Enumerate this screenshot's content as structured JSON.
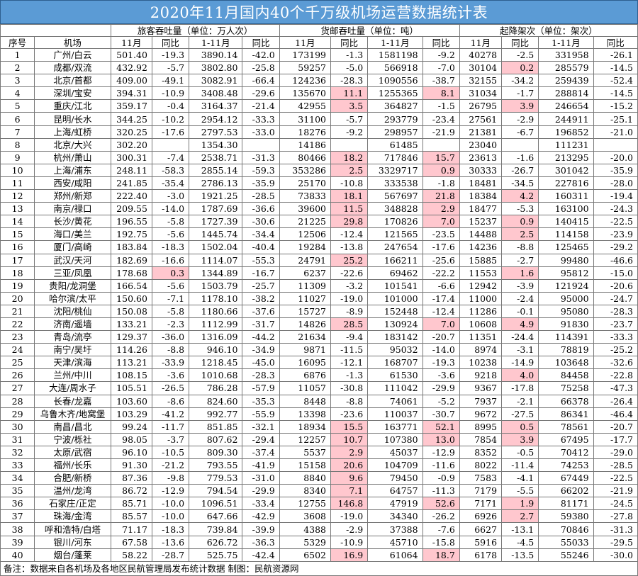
{
  "title": "2020年11月国内40个千万级机场运营数据统计表",
  "header": {
    "seq": "序号",
    "airport": "机场",
    "group_passenger": "旅客吞吐量（单位：万人次）",
    "group_cargo": "货邮吞吐量（单位：吨）",
    "group_flights": "起降架次（单位：架次）",
    "nov": "11月",
    "yoy": "同比",
    "ytd": "1-11月"
  },
  "highlight_color": "#ffc7ce",
  "header_color": "#5b9bd5",
  "rows": [
    [
      "1",
      "广州/白云",
      "501.40",
      "-19.3",
      "3890.14",
      "-42.0",
      "173199",
      "-1.3",
      "1581198",
      "-9.2",
      "40278",
      "-2.5",
      "331958",
      "-26.1"
    ],
    [
      "2",
      "成都/双流",
      "432.92",
      "-5.7",
      "3802.80",
      "-25.8",
      "59257",
      "-5.0",
      "566918",
      "-7.0",
      "30104",
      "0.2",
      "285579",
      "-14.5"
    ],
    [
      "3",
      "北京/首都",
      "409.00",
      "-49.1",
      "3082.91",
      "-66.4",
      "124236",
      "-28.3",
      "1090556",
      "-38.7",
      "32155",
      "-34.2",
      "259439",
      "-52.4"
    ],
    [
      "4",
      "深圳/宝安",
      "394.31",
      "-10.9",
      "3408.48",
      "-29.6",
      "135670",
      "11.1",
      "1255365",
      "8.1",
      "31034",
      "-1.7",
      "288814",
      "-14.5"
    ],
    [
      "5",
      "重庆/江北",
      "359.17",
      "-0.4",
      "3164.37",
      "-21.4",
      "42955",
      "3.5",
      "364827",
      "-1.5",
      "26795",
      "3.9",
      "246654",
      "-15.2"
    ],
    [
      "6",
      "昆明/长水",
      "344.25",
      "-10.2",
      "2954.12",
      "-33.3",
      "31100",
      "-5.7",
      "293779",
      "-23.4",
      "27561",
      "-2.9",
      "244911",
      "-25.1"
    ],
    [
      "7",
      "上海/虹桥",
      "320.25",
      "-17.6",
      "2797.53",
      "-33.0",
      "18276",
      "-9.2",
      "298957",
      "-21.9",
      "21381",
      "-6.7",
      "196852",
      "-21.0"
    ],
    [
      "8",
      "北京/大兴",
      "302.20",
      "",
      "1354.30",
      "",
      "14186",
      "",
      "61485",
      "",
      "23040",
      "",
      "111231",
      ""
    ],
    [
      "9",
      "杭州/萧山",
      "300.31",
      "-7.4",
      "2538.71",
      "-31.3",
      "80466",
      "18.2",
      "717846",
      "15.7",
      "23613",
      "-1.6",
      "213295",
      "-20.0"
    ],
    [
      "10",
      "上海/浦东",
      "248.11",
      "-58.3",
      "2855.14",
      "-59.3",
      "353286",
      "2.5",
      "3329717",
      "0.9",
      "30333",
      "-26.7",
      "301042",
      "-35.9"
    ],
    [
      "11",
      "西安/咸阳",
      "241.85",
      "-35.4",
      "2786.13",
      "-35.9",
      "25170",
      "-10.8",
      "333538",
      "-1.8",
      "18481",
      "-34.5",
      "227816",
      "-28.0"
    ],
    [
      "12",
      "郑州/新郑",
      "222.40",
      "-3.0",
      "1921.25",
      "-28.5",
      "73833",
      "18.1",
      "567697",
      "21.8",
      "18384",
      "4.2",
      "160311",
      "-19.4"
    ],
    [
      "13",
      "南京/禄口",
      "209.55",
      "-14.0",
      "1787.69",
      "-36.6",
      "39600",
      "11.5",
      "348828",
      "2.9",
      "18477",
      "-5.3",
      "163100",
      "-24.3"
    ],
    [
      "14",
      "长沙/黄花",
      "196.55",
      "-5.8",
      "1727.39",
      "-30.6",
      "21225",
      "29.8",
      "170826",
      "7.0",
      "15237",
      "0.9",
      "140415",
      "-22.5"
    ],
    [
      "15",
      "海口/美兰",
      "192.75",
      "-5.6",
      "1445.74",
      "-34.4",
      "12506",
      "-12.4",
      "121565",
      "-23.5",
      "14488",
      "2.5",
      "114158",
      "-23.9"
    ],
    [
      "16",
      "厦门/高崎",
      "183.84",
      "-18.3",
      "1502.04",
      "-40.4",
      "19284",
      "-13.8",
      "247654",
      "-17.6",
      "14236",
      "-8.8",
      "125465",
      "-29.2"
    ],
    [
      "17",
      "武汉/天河",
      "182.69",
      "-16.6",
      "1114.07",
      "-55.3",
      "24791",
      "25.2",
      "166211",
      "-25.6",
      "15885",
      "-2.7",
      "99480",
      "-46.6"
    ],
    [
      "18",
      "三亚/凤凰",
      "178.68",
      "0.3",
      "1344.89",
      "-16.7",
      "6237",
      "-22.6",
      "69462",
      "-22.2",
      "11553",
      "1.6",
      "95812",
      "-15.0"
    ],
    [
      "19",
      "贵阳/龙洞堡",
      "166.54",
      "-5.6",
      "1503.79",
      "-25.7",
      "11309",
      "-3.2",
      "101541",
      "-6.6",
      "12942",
      "-3.9",
      "121924",
      "-20.6"
    ],
    [
      "20",
      "哈尔滨/太平",
      "150.60",
      "-7.1",
      "1178.10",
      "-38.2",
      "11027",
      "-19.0",
      "101000",
      "-17.4",
      "11000",
      "-2.4",
      "95000",
      "-24.7"
    ],
    [
      "21",
      "沈阳/桃仙",
      "150.08",
      "-5.8",
      "1180.66",
      "-37.6",
      "15727",
      "-8.9",
      "152448",
      "-12.4",
      "11286",
      "-0.1",
      "95080",
      "-28.3"
    ],
    [
      "22",
      "济南/遥墙",
      "133.21",
      "-2.3",
      "1112.99",
      "-31.7",
      "14826",
      "28.5",
      "130924",
      "7.0",
      "10608",
      "4.9",
      "91830",
      "-23.7"
    ],
    [
      "23",
      "青岛/流亭",
      "129.37",
      "-36.0",
      "1316.09",
      "-44.2",
      "21634",
      "-9.4",
      "183142",
      "-20.7",
      "11351",
      "-24.4",
      "114391",
      "-33.3"
    ],
    [
      "24",
      "南宁/吴圩",
      "114.26",
      "-8.8",
      "946.10",
      "-34.9",
      "9871",
      "-11.5",
      "95032",
      "-14.0",
      "8974",
      "-3.1",
      "78819",
      "-25.2"
    ],
    [
      "25",
      "天津/滨海",
      "113.21",
      "-33.9",
      "1218.45",
      "-45.0",
      "16095",
      "-12.1",
      "168707",
      "-19.3",
      "10238",
      "-14.9",
      "103648",
      "-32.6"
    ],
    [
      "26",
      "兰州/中川",
      "108.15",
      "-3.6",
      "1010.68",
      "-28.3",
      "6876",
      "-1.3",
      "61530",
      "-3.6",
      "9218",
      "4.0",
      "84458",
      "-22.8"
    ],
    [
      "27",
      "大连/周水子",
      "105.51",
      "-26.5",
      "786.28",
      "-57.9",
      "11057",
      "-30.8",
      "111042",
      "-29.9",
      "9367",
      "-17.8",
      "75258",
      "-47.3"
    ],
    [
      "28",
      "长春/龙嘉",
      "103.60",
      "-8.6",
      "824.60",
      "-35.3",
      "8448",
      "-8.8",
      "74061",
      "-5.2",
      "7937",
      "-2.1",
      "66378",
      "-26.4"
    ],
    [
      "29",
      "乌鲁木齐/地窝堡",
      "103.29",
      "-41.2",
      "992.77",
      "-55.9",
      "13398",
      "-23.6",
      "110037",
      "-30.7",
      "9672",
      "-27.5",
      "86341",
      "-46.4"
    ],
    [
      "30",
      "南昌/昌北",
      "99.24",
      "-11.7",
      "851.85",
      "-32.1",
      "18934",
      "15.5",
      "163771",
      "52.1",
      "8995",
      "0.5",
      "78561",
      "-20.7"
    ],
    [
      "31",
      "宁波/栎社",
      "98.05",
      "-3.7",
      "807.62",
      "-29.4",
      "12257",
      "10.7",
      "107380",
      "13.0",
      "7854",
      "3.9",
      "67495",
      "-17.7"
    ],
    [
      "32",
      "太原/武宿",
      "96.10",
      "-10.5",
      "809.30",
      "-37.4",
      "5537",
      "2.9",
      "45037",
      "-12.9",
      "8352",
      "-0.5",
      "70412",
      "-29.0"
    ],
    [
      "33",
      "福州/长乐",
      "91.30",
      "-21.2",
      "793.55",
      "-41.9",
      "15158",
      "20.6",
      "104709",
      "-11.6",
      "8022",
      "-11.4",
      "74253",
      "-28.5"
    ],
    [
      "34",
      "合肥/新桥",
      "87.36",
      "-9.8",
      "779.53",
      "-31.0",
      "8840",
      "9.6",
      "79450",
      "-0.9",
      "7583",
      "-4.1",
      "67449",
      "-22.5"
    ],
    [
      "35",
      "温州/龙湾",
      "86.72",
      "-12.9",
      "794.54",
      "-29.9",
      "8340",
      "7.1",
      "64757",
      "-11.3",
      "7179",
      "-5.5",
      "66202",
      "-21.9"
    ],
    [
      "36",
      "石家庄/正定",
      "85.71",
      "-10.0",
      "1096.51",
      "-33.4",
      "12755",
      "146.8",
      "47919",
      "52.6",
      "7171",
      "1.9",
      "81171",
      "-24.5"
    ],
    [
      "37",
      "珠海/金湾",
      "85.57",
      "-10.0",
      "647.66",
      "-42.9",
      "3608",
      "-19.0",
      "34340",
      "-26.2",
      "6926",
      "2.7",
      "59380",
      "-27.8"
    ],
    [
      "38",
      "呼和浩特/白塔",
      "71.17",
      "-18.3",
      "739.84",
      "-39.9",
      "4388",
      "-2.9",
      "37388",
      "-7.6",
      "6627",
      "-13.1",
      "70846",
      "-31.3"
    ],
    [
      "39",
      "银川/河东",
      "67.58",
      "-13.6",
      "626.72",
      "-36.3",
      "5329",
      "-10.9",
      "45710",
      "-15.8",
      "5916",
      "-4.5",
      "55033",
      "-29.5"
    ],
    [
      "40",
      "烟台/蓬莱",
      "58.22",
      "-28.7",
      "525.75",
      "-42.4",
      "6502",
      "16.9",
      "61064",
      "18.7",
      "6178",
      "-13.5",
      "55246",
      "-30.0"
    ]
  ],
  "highlights": [
    [
      2,
      11
    ],
    [
      4,
      7
    ],
    [
      4,
      9
    ],
    [
      5,
      7
    ],
    [
      5,
      11
    ],
    [
      9,
      7
    ],
    [
      9,
      9
    ],
    [
      10,
      7
    ],
    [
      10,
      9
    ],
    [
      12,
      7
    ],
    [
      12,
      9
    ],
    [
      12,
      11
    ],
    [
      13,
      7
    ],
    [
      13,
      9
    ],
    [
      14,
      7
    ],
    [
      14,
      9
    ],
    [
      14,
      11
    ],
    [
      15,
      11
    ],
    [
      17,
      7
    ],
    [
      18,
      3
    ],
    [
      18,
      11
    ],
    [
      22,
      7
    ],
    [
      22,
      9
    ],
    [
      22,
      11
    ],
    [
      26,
      11
    ],
    [
      30,
      7
    ],
    [
      30,
      9
    ],
    [
      30,
      11
    ],
    [
      31,
      7
    ],
    [
      31,
      9
    ],
    [
      31,
      11
    ],
    [
      32,
      7
    ],
    [
      33,
      7
    ],
    [
      34,
      7
    ],
    [
      35,
      7
    ],
    [
      36,
      7
    ],
    [
      36,
      9
    ],
    [
      36,
      11
    ],
    [
      37,
      11
    ],
    [
      40,
      7
    ],
    [
      40,
      9
    ]
  ],
  "footnote": "备注：数据来自各机场及各地区民航管理局发布统计数据 制图：民航资源网"
}
